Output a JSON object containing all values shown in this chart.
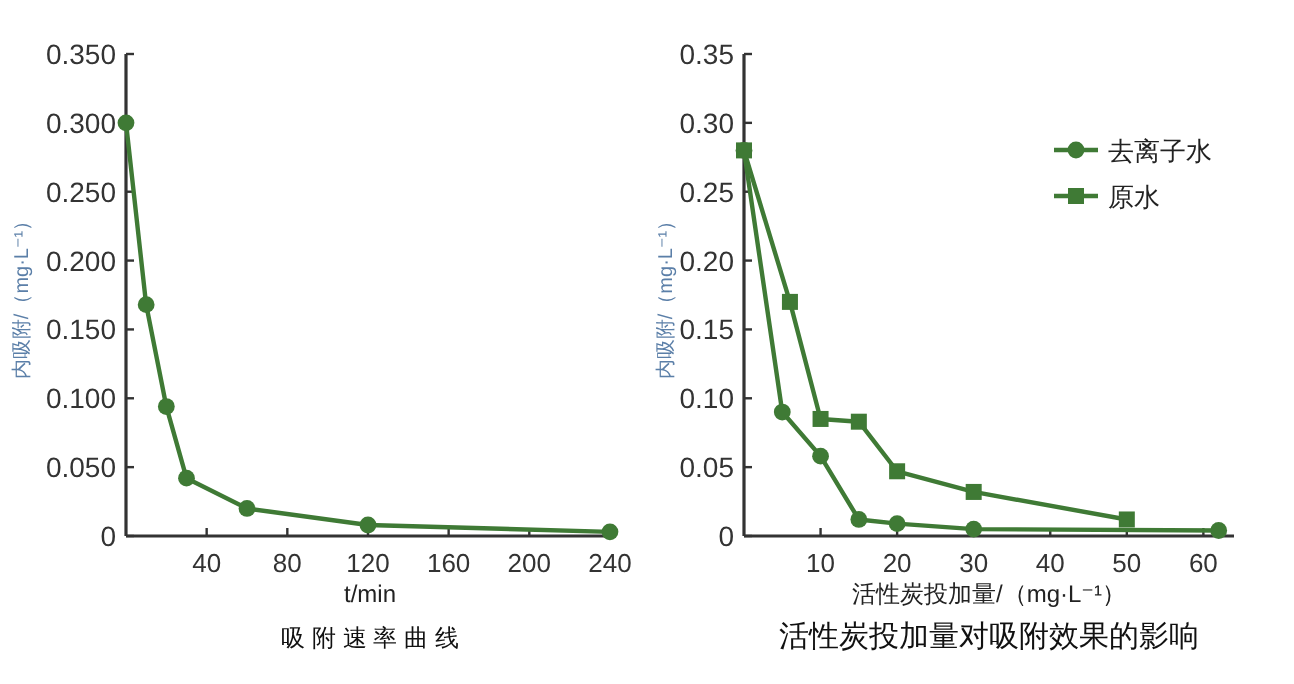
{
  "chart_data": [
    {
      "type": "line",
      "title": "吸 附 速 率 曲 线",
      "xlabel": "t/min",
      "ylabel": "内吸附/（mg·L⁻¹）",
      "x": [
        0,
        10,
        20,
        30,
        60,
        120,
        240
      ],
      "series": [
        {
          "color": "#3f7a35",
          "values": [
            0.3,
            0.168,
            0.094,
            0.042,
            0.02,
            0.008,
            0.003
          ]
        }
      ],
      "xlim": [
        0,
        242
      ],
      "xticks": [
        40,
        80,
        120,
        160,
        200,
        240
      ],
      "ylim": [
        0,
        0.35
      ],
      "yticks": [
        {
          "value": 0,
          "label": "0"
        },
        {
          "value": 0.05,
          "label": "0.050"
        },
        {
          "value": 0.1,
          "label": "0.100"
        },
        {
          "value": 0.15,
          "label": "0.150"
        },
        {
          "value": 0.2,
          "label": "0.200"
        },
        {
          "value": 0.25,
          "label": "0.250"
        },
        {
          "value": 0.3,
          "label": "0.300"
        },
        {
          "value": 0.35,
          "label": "0.350"
        }
      ],
      "marker": "circle",
      "grid": false,
      "legend": false
    },
    {
      "type": "line",
      "title": "活性炭投加量对吸附效果的影响",
      "xlabel": "活性炭投加量/（mg·L⁻¹）",
      "ylabel": "内吸附/（mg·L⁻¹）",
      "series": [
        {
          "name": "去离子水",
          "color": "#3f7a35",
          "marker": "circle",
          "x": [
            0,
            5,
            10,
            15,
            20,
            30,
            62
          ],
          "values": [
            0.28,
            0.09,
            0.058,
            0.012,
            0.009,
            0.005,
            0.004
          ]
        },
        {
          "name": "原水",
          "color": "#3f7a35",
          "marker": "square",
          "x": [
            0,
            6,
            10,
            15,
            20,
            30,
            50
          ],
          "values": [
            0.28,
            0.17,
            0.085,
            0.083,
            0.047,
            0.032,
            0.012
          ]
        }
      ],
      "xlim": [
        0,
        64
      ],
      "xticks": [
        10,
        20,
        30,
        40,
        50,
        60
      ],
      "ylim": [
        0,
        0.35
      ],
      "yticks": [
        {
          "value": 0,
          "label": "0"
        },
        {
          "value": 0.05,
          "label": "0.05"
        },
        {
          "value": 0.1,
          "label": "0.10"
        },
        {
          "value": 0.15,
          "label": "0.15"
        },
        {
          "value": 0.2,
          "label": "0.20"
        },
        {
          "value": 0.25,
          "label": "0.25"
        },
        {
          "value": 0.3,
          "label": "0.30"
        },
        {
          "value": 0.35,
          "label": "0.35"
        }
      ],
      "grid": false,
      "legend": "top right"
    }
  ]
}
